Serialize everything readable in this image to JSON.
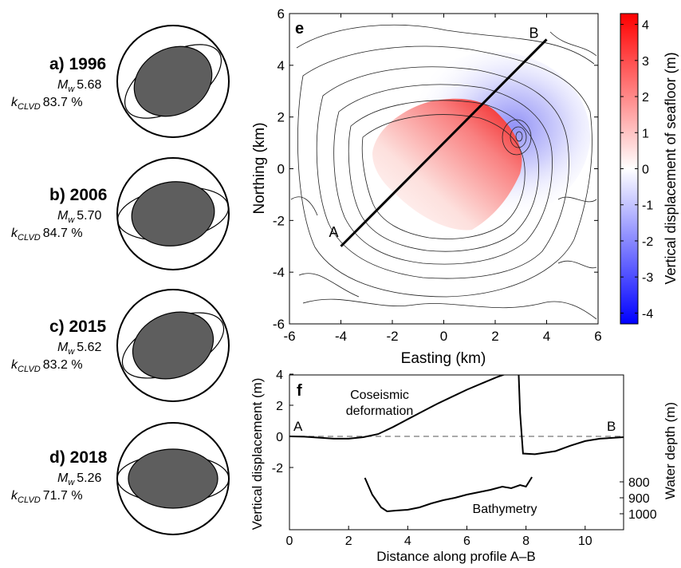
{
  "events": [
    {
      "title": "a) 1996",
      "mw_symbol": "M",
      "mw_sub": "w",
      "mw": "5.68",
      "k_symbol": "k",
      "k_sub": "CLVD",
      "k": "83.7 %"
    },
    {
      "title": "b) 2006",
      "mw_symbol": "M",
      "mw_sub": "w",
      "mw": "5.70",
      "k_symbol": "k",
      "k_sub": "CLVD",
      "k": "84.7 %"
    },
    {
      "title": "c) 2015",
      "mw_symbol": "M",
      "mw_sub": "w",
      "mw": "5.62",
      "k_symbol": "k",
      "k_sub": "CLVD",
      "k": "83.2 %"
    },
    {
      "title": "d) 2018",
      "mw_symbol": "M",
      "mw_sub": "w",
      "mw": "5.26",
      "k_symbol": "k",
      "k_sub": "CLVD",
      "k": "71.7 %"
    }
  ],
  "chart_data": [
    {
      "type": "heatmap",
      "panel_label": "e",
      "xlabel": "Easting (km)",
      "ylabel": "Northing (km)",
      "xlim": [
        -6,
        6
      ],
      "ylim": [
        -6,
        6
      ],
      "xticks": [
        "-6",
        "-4",
        "-2",
        "0",
        "2",
        "4",
        "6"
      ],
      "yticks": [
        "-6",
        "-4",
        "-2",
        "0",
        "2",
        "4",
        "6"
      ],
      "colorbar": {
        "label": "Vertical displacement of seafloor (m)",
        "range": [
          -4.3,
          4.3
        ],
        "ticks": [
          "4",
          "3",
          "2",
          "1",
          "0",
          "-1",
          "-2",
          "-3",
          "-4"
        ],
        "colors": {
          "high": "#ff0000",
          "mid": "#ffffff",
          "low": "#0000ff"
        }
      },
      "profile": {
        "start_label": "A",
        "end_label": "B",
        "start": [
          -4,
          -3
        ],
        "end": [
          4,
          5
        ]
      },
      "uplift_region": {
        "max_displacement_m": 4.1
      },
      "subsidence_region": {
        "min_displacement_m": -1.1
      }
    },
    {
      "type": "line",
      "panel_label": "f",
      "xlabel": "Distance along profile A–B",
      "ylabel_left": "Vertical displacement (m)",
      "ylabel_right": "Water depth (m)",
      "xlim": [
        0,
        11.3
      ],
      "xticks": [
        "0",
        "2",
        "4",
        "6",
        "8",
        "10"
      ],
      "yticks_left": [
        "4",
        "2",
        "0",
        "-2"
      ],
      "yticks_right": [
        "800",
        "900",
        "1000"
      ],
      "endpoint_labels": {
        "start": "A",
        "end": "B"
      },
      "series": [
        {
          "name": "Coseismic deformation",
          "label_lines": [
            "Coseismic",
            "deformation"
          ],
          "x": [
            0,
            0.5,
            1,
            1.5,
            2,
            2.5,
            3,
            3.5,
            4,
            4.5,
            5,
            5.5,
            6,
            6.5,
            7,
            7.3,
            7.6,
            7.75,
            7.8,
            7.9,
            8.3,
            9,
            9.5,
            10,
            10.5,
            11.3
          ],
          "y": [
            0,
            -0.02,
            -0.08,
            -0.15,
            -0.15,
            -0.05,
            0.15,
            0.6,
            1.1,
            1.6,
            2.1,
            2.55,
            3.0,
            3.4,
            3.8,
            4.0,
            4.1,
            4.05,
            1.5,
            -1.1,
            -1.15,
            -0.95,
            -0.6,
            -0.3,
            -0.15,
            -0.05
          ]
        },
        {
          "name": "Bathymetry",
          "label_lines": [
            "Bathymetry"
          ],
          "x": [
            2.55,
            2.8,
            3.1,
            3.3,
            3.6,
            4.0,
            4.4,
            4.8,
            5.2,
            5.6,
            6.0,
            6.4,
            6.8,
            7.0,
            7.2,
            7.5,
            7.8,
            8.0,
            8.2
          ],
          "y": [
            775,
            880,
            960,
            985,
            980,
            975,
            960,
            935,
            915,
            900,
            880,
            865,
            850,
            840,
            830,
            840,
            820,
            830,
            770
          ]
        }
      ],
      "reference_line": {
        "y": 0,
        "style": "dashed"
      }
    }
  ]
}
